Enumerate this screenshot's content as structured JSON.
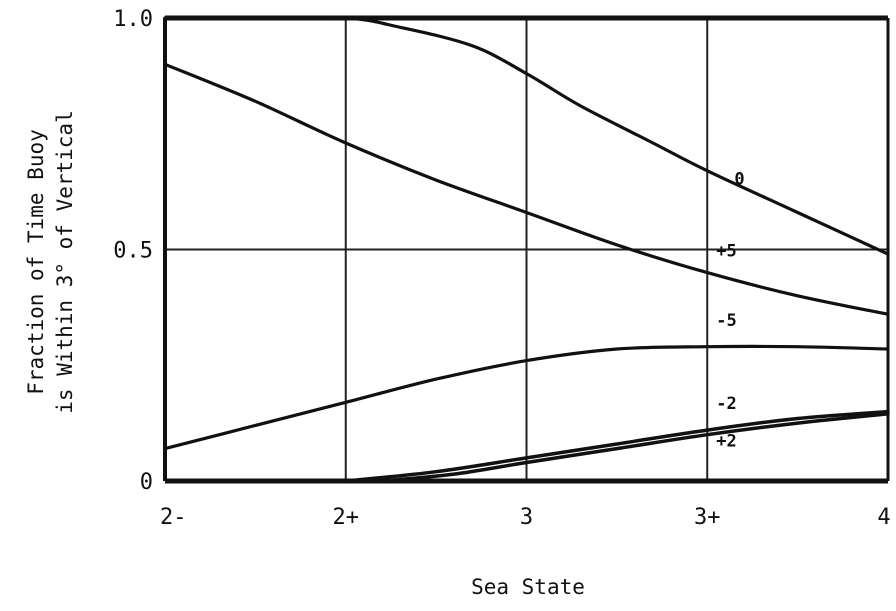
{
  "chart_data": {
    "type": "line",
    "title": "",
    "xlabel": "Sea State",
    "ylabel_lines": [
      "Fraction of Time Buoy",
      "is Within 3° of Vertical"
    ],
    "categories": [
      "2-",
      "2+",
      "3",
      "3+",
      "4"
    ],
    "x_ticks": [
      0,
      1,
      2,
      3,
      4
    ],
    "ylim": [
      0,
      1.0
    ],
    "y_ticks": [
      0,
      0.5,
      1.0
    ],
    "y_tick_labels": [
      "0",
      "0.5",
      "1.0"
    ],
    "grid": true,
    "series": [
      {
        "name": "0",
        "x": [
          0,
          0.5,
          1,
          1.3,
          1.7,
          2,
          2.3,
          2.7,
          3,
          3.5,
          4
        ],
        "y": [
          1.0,
          1.0,
          1.0,
          0.98,
          0.94,
          0.88,
          0.81,
          0.73,
          0.67,
          0.58,
          0.49
        ]
      },
      {
        "name": "+5",
        "x": [
          0,
          0.5,
          1,
          1.5,
          2,
          2.5,
          3,
          3.5,
          4
        ],
        "y": [
          0.9,
          0.82,
          0.73,
          0.65,
          0.58,
          0.51,
          0.45,
          0.4,
          0.36
        ]
      },
      {
        "name": "-5",
        "x": [
          0,
          0.5,
          1,
          1.5,
          2,
          2.5,
          3,
          3.5,
          4
        ],
        "y": [
          0.07,
          0.12,
          0.17,
          0.22,
          0.26,
          0.285,
          0.29,
          0.29,
          0.285
        ]
      },
      {
        "name": "-2",
        "x": [
          1,
          1.5,
          2,
          2.5,
          3,
          3.5,
          4
        ],
        "y": [
          0.0,
          0.02,
          0.05,
          0.08,
          0.11,
          0.135,
          0.15
        ]
      },
      {
        "name": "+2",
        "x": [
          1.2,
          1.6,
          2,
          2.5,
          3,
          3.5,
          4
        ],
        "y": [
          0.0,
          0.015,
          0.04,
          0.07,
          0.1,
          0.125,
          0.145
        ]
      }
    ],
    "curve_labels": [
      {
        "series": "0",
        "text": "0",
        "x": 3.15,
        "y": 0.64
      },
      {
        "series": "+5",
        "text": "+5",
        "x": 3.05,
        "y": 0.485
      },
      {
        "series": "-5",
        "text": "-5",
        "x": 3.05,
        "y": 0.335
      },
      {
        "series": "-2",
        "text": "-2",
        "x": 3.05,
        "y": 0.155
      },
      {
        "series": "+2",
        "text": "+2",
        "x": 3.05,
        "y": 0.075
      }
    ]
  }
}
